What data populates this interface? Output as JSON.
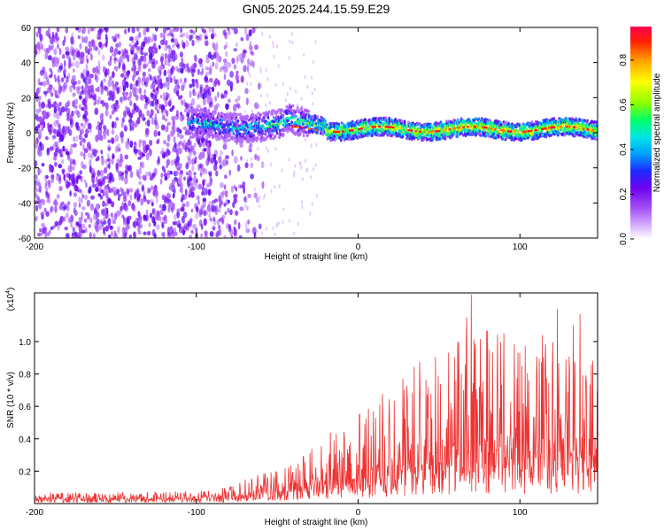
{
  "chart_data": [
    {
      "type": "heatmap",
      "title": "GN05.2025.244.15.59.E29",
      "xlabel": "Height of straight line (km)",
      "ylabel": "Frequency (Hz)",
      "xlim": [
        -200,
        148
      ],
      "ylim": [
        -60,
        60
      ],
      "xticks": [
        -200,
        -100,
        0,
        100
      ],
      "yticks": [
        -60,
        -40,
        -20,
        0,
        20,
        40,
        60
      ],
      "colorbar": {
        "label": "Normalized spectral amplitude",
        "range": [
          0.0,
          0.95
        ],
        "ticks": [
          "0.0",
          "0.2",
          "0.4",
          "0.6",
          "0.8"
        ],
        "colormap": [
          "#ffffff",
          "#d7b4ff",
          "#a855f7",
          "#6d00f0",
          "#1d2bff",
          "#00a0ff",
          "#00e5e5",
          "#00ff66",
          "#8cff00",
          "#ffff00",
          "#ffa000",
          "#ff2000",
          "#ff0050"
        ]
      },
      "features": {
        "noise_region_km": [
          -200,
          -65
        ],
        "signal_band_center_hz": 2,
        "signal_band_halfwidth_hz": 5,
        "signal_onset_km": -105
      }
    },
    {
      "type": "line",
      "xlabel": "Height of straight line (km)",
      "ylabel": "SNR (10 * v/v)",
      "yscale_label": "(x10",
      "yscale_exp": "4",
      "xlim": [
        -200,
        148
      ],
      "ylim": [
        0,
        1.3
      ],
      "xticks": [
        -200,
        -100,
        0,
        100
      ],
      "yticks": [
        "0.2",
        "0.4",
        "0.6",
        "0.8",
        "1.0"
      ],
      "ytick_values": [
        0.2,
        0.4,
        0.6,
        0.8,
        1.0
      ],
      "color": "#ee3333",
      "envelope": {
        "x": [
          -200,
          -150,
          -100,
          -80,
          -60,
          -40,
          -20,
          0,
          20,
          40,
          60,
          80,
          100,
          120,
          148
        ],
        "base": [
          0.03,
          0.03,
          0.035,
          0.04,
          0.06,
          0.09,
          0.12,
          0.16,
          0.2,
          0.25,
          0.28,
          0.3,
          0.3,
          0.3,
          0.28
        ],
        "peak": [
          0.07,
          0.07,
          0.08,
          0.1,
          0.2,
          0.28,
          0.42,
          0.55,
          0.72,
          0.9,
          1.05,
          1.1,
          1.0,
          1.0,
          0.95
        ]
      },
      "highlights": [
        {
          "x": 70,
          "y": 1.29
        },
        {
          "x": 123,
          "y": 1.2
        },
        {
          "x": 137,
          "y": 1.17
        },
        {
          "x": 67,
          "y": 1.15
        },
        {
          "x": 133,
          "y": 1.1
        },
        {
          "x": 90,
          "y": 1.05
        },
        {
          "x": 114,
          "y": 1.04
        },
        {
          "x": 62,
          "y": 1.0
        },
        {
          "x": 81,
          "y": 0.95
        },
        {
          "x": 100,
          "y": 0.93
        }
      ]
    }
  ]
}
